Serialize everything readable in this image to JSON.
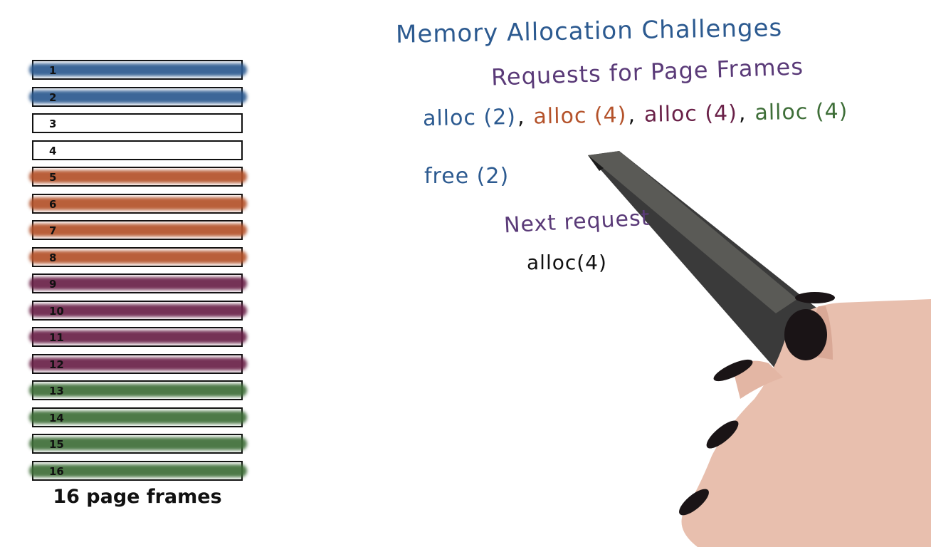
{
  "title": "Memory Allocation Challenges",
  "subtitle": "Requests for Page Frames",
  "requests": [
    {
      "text": "alloc (2)",
      "color": "#2c5a90"
    },
    {
      "text": "alloc (4)",
      "color": "#b4522a"
    },
    {
      "text": "alloc (4)",
      "color": "#6a2148"
    },
    {
      "text": "alloc (4)",
      "color": "#3e6e38"
    }
  ],
  "separator": ",",
  "free_request": "free (2)",
  "next_label": "Next request",
  "next_request": "alloc(4)",
  "frames_caption": "16 page frames",
  "frames": [
    {
      "number": "1",
      "color": "#2c5a90"
    },
    {
      "number": "2",
      "color": "#2c5a90"
    },
    {
      "number": "3",
      "color": ""
    },
    {
      "number": "4",
      "color": ""
    },
    {
      "number": "5",
      "color": "#b4522a"
    },
    {
      "number": "6",
      "color": "#b4522a"
    },
    {
      "number": "7",
      "color": "#b4522a"
    },
    {
      "number": "8",
      "color": "#b4522a"
    },
    {
      "number": "9",
      "color": "#6a2148"
    },
    {
      "number": "10",
      "color": "#6a2148"
    },
    {
      "number": "11",
      "color": "#6a2148"
    },
    {
      "number": "12",
      "color": "#6a2148"
    },
    {
      "number": "13",
      "color": "#3e6e38"
    },
    {
      "number": "14",
      "color": "#3e6e38"
    },
    {
      "number": "15",
      "color": "#3e6e38"
    },
    {
      "number": "16",
      "color": "#3e6e38"
    }
  ],
  "colors": {
    "title": "#2c5a90",
    "subtitle": "#5a3a78",
    "free": "#2c5a90",
    "next_label": "#5a3a78",
    "next_request": "#111111"
  }
}
